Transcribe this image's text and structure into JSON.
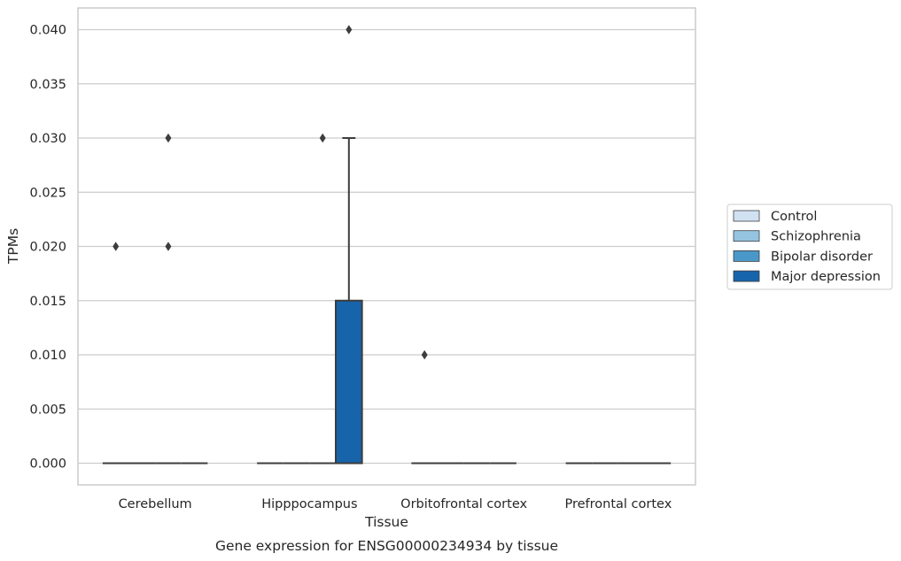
{
  "chart_data": {
    "type": "box",
    "title": "Gene expression for ENSG00000234934 by tissue",
    "xlabel": "Tissue",
    "ylabel": "TPMs",
    "ylim": [
      -0.002,
      0.042
    ],
    "yticks": [
      0.0,
      0.005,
      0.01,
      0.015,
      0.02,
      0.025,
      0.03,
      0.035,
      0.04
    ],
    "ytick_labels": [
      "0.000",
      "0.005",
      "0.010",
      "0.015",
      "0.020",
      "0.025",
      "0.030",
      "0.035",
      "0.040"
    ],
    "grid": "horizontal",
    "legend_position": "right",
    "categories": [
      "Cerebellum",
      "Hipppocampus",
      "Orbitofrontal cortex",
      "Prefrontal cortex"
    ],
    "series": [
      {
        "name": "Control",
        "color": "#d0e1f2",
        "boxes": [
          {
            "q1": 0,
            "median": 0,
            "q3": 0,
            "whisker_low": 0,
            "whisker_high": 0,
            "outliers": [
              0.02
            ]
          },
          {
            "q1": 0,
            "median": 0,
            "q3": 0,
            "whisker_low": 0,
            "whisker_high": 0,
            "outliers": []
          },
          {
            "q1": 0,
            "median": 0,
            "q3": 0,
            "whisker_low": 0,
            "whisker_high": 0,
            "outliers": [
              0.01
            ]
          },
          {
            "q1": 0,
            "median": 0,
            "q3": 0,
            "whisker_low": 0,
            "whisker_high": 0,
            "outliers": []
          }
        ]
      },
      {
        "name": "Schizophrenia",
        "color": "#94c4df",
        "boxes": [
          {
            "q1": 0,
            "median": 0,
            "q3": 0,
            "whisker_low": 0,
            "whisker_high": 0,
            "outliers": []
          },
          {
            "q1": 0,
            "median": 0,
            "q3": 0,
            "whisker_low": 0,
            "whisker_high": 0,
            "outliers": []
          },
          {
            "q1": 0,
            "median": 0,
            "q3": 0,
            "whisker_low": 0,
            "whisker_high": 0,
            "outliers": []
          },
          {
            "q1": 0,
            "median": 0,
            "q3": 0,
            "whisker_low": 0,
            "whisker_high": 0,
            "outliers": []
          }
        ]
      },
      {
        "name": "Bipolar disorder",
        "color": "#4a98c9",
        "boxes": [
          {
            "q1": 0,
            "median": 0,
            "q3": 0,
            "whisker_low": 0,
            "whisker_high": 0,
            "outliers": [
              0.02,
              0.03
            ]
          },
          {
            "q1": 0,
            "median": 0,
            "q3": 0,
            "whisker_low": 0,
            "whisker_high": 0,
            "outliers": [
              0.03
            ]
          },
          {
            "q1": 0,
            "median": 0,
            "q3": 0,
            "whisker_low": 0,
            "whisker_high": 0,
            "outliers": []
          },
          {
            "q1": 0,
            "median": 0,
            "q3": 0,
            "whisker_low": 0,
            "whisker_high": 0,
            "outliers": []
          }
        ]
      },
      {
        "name": "Major depression",
        "color": "#1764ab",
        "boxes": [
          {
            "q1": 0,
            "median": 0,
            "q3": 0,
            "whisker_low": 0,
            "whisker_high": 0,
            "outliers": []
          },
          {
            "q1": 0,
            "median": 0,
            "q3": 0.015,
            "whisker_low": 0,
            "whisker_high": 0.03,
            "outliers": [
              0.04
            ]
          },
          {
            "q1": 0,
            "median": 0,
            "q3": 0,
            "whisker_low": 0,
            "whisker_high": 0,
            "outliers": []
          },
          {
            "q1": 0,
            "median": 0,
            "q3": 0,
            "whisker_low": 0,
            "whisker_high": 0,
            "outliers": []
          }
        ]
      }
    ]
  }
}
